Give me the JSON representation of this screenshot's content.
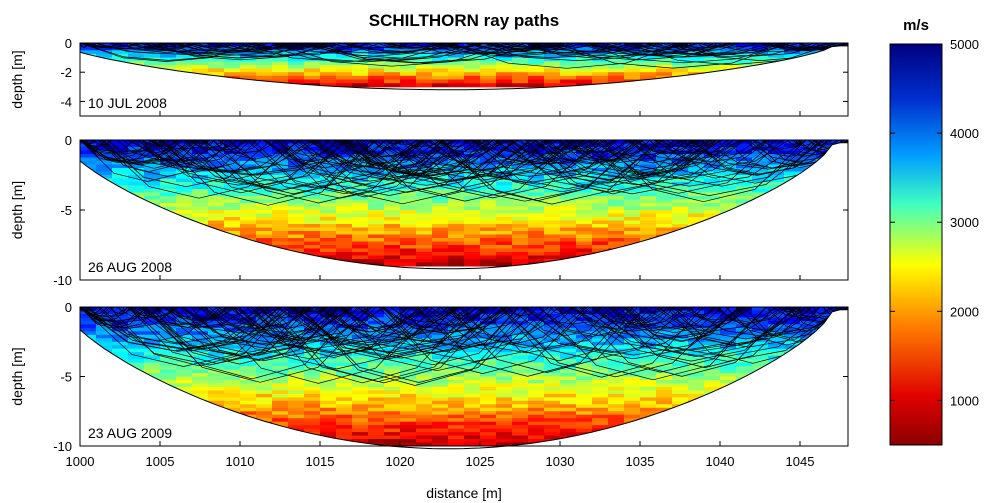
{
  "chart_data": {
    "type": "heatmap",
    "title": "SCHILTHORN ray paths",
    "xlabel": "distance [m]",
    "xlim": [
      1000,
      1048
    ],
    "xticks": [
      1000,
      1005,
      1010,
      1015,
      1020,
      1025,
      1030,
      1035,
      1040,
      1045
    ],
    "colorbar": {
      "label": "m/s",
      "range": [
        500,
        5000
      ],
      "ticks": [
        1000,
        2000,
        3000,
        4000,
        5000
      ],
      "colormap": "jet"
    },
    "panels": [
      {
        "date": "10 JUL 2008",
        "ylabel": "depth [m]",
        "ylim": [
          -5,
          0
        ],
        "yticks": [
          0,
          -2,
          -4
        ],
        "max_depth": 3
      },
      {
        "date": "26 AUG 2008",
        "ylabel": "depth [m]",
        "ylim": [
          -10,
          0
        ],
        "yticks": [
          0,
          -5,
          -10
        ],
        "max_depth": 9
      },
      {
        "date": "23 AUG 2009",
        "ylabel": "depth [m]",
        "ylim": [
          -10,
          0
        ],
        "yticks": [
          0,
          -5,
          -10
        ],
        "max_depth": 10
      }
    ]
  }
}
